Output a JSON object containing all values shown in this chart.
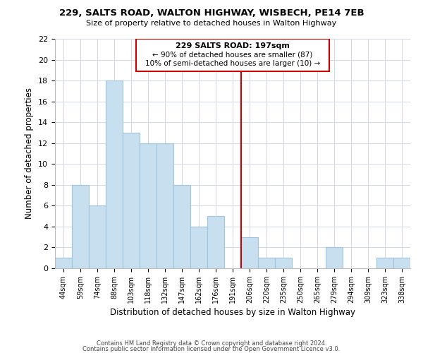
{
  "title": "229, SALTS ROAD, WALTON HIGHWAY, WISBECH, PE14 7EB",
  "subtitle": "Size of property relative to detached houses in Walton Highway",
  "xlabel": "Distribution of detached houses by size in Walton Highway",
  "ylabel": "Number of detached properties",
  "bar_labels": [
    "44sqm",
    "59sqm",
    "74sqm",
    "88sqm",
    "103sqm",
    "118sqm",
    "132sqm",
    "147sqm",
    "162sqm",
    "176sqm",
    "191sqm",
    "206sqm",
    "220sqm",
    "235sqm",
    "250sqm",
    "265sqm",
    "279sqm",
    "294sqm",
    "309sqm",
    "323sqm",
    "338sqm"
  ],
  "bar_values": [
    1,
    8,
    6,
    18,
    13,
    12,
    12,
    8,
    4,
    5,
    0,
    3,
    1,
    1,
    0,
    0,
    2,
    0,
    0,
    1,
    1
  ],
  "bar_color": "#c8dff0",
  "bar_edge_color": "#a0c4de",
  "annotation_title": "229 SALTS ROAD: 197sqm",
  "annotation_line1": "← 90% of detached houses are smaller (87)",
  "annotation_line2": "10% of semi-detached houses are larger (10) →",
  "vline_color": "#cc0000",
  "ylim": [
    0,
    22
  ],
  "yticks": [
    0,
    2,
    4,
    6,
    8,
    10,
    12,
    14,
    16,
    18,
    20,
    22
  ],
  "footer_line1": "Contains HM Land Registry data © Crown copyright and database right 2024.",
  "footer_line2": "Contains public sector information licensed under the Open Government Licence v3.0.",
  "bg_color": "#ffffff",
  "grid_color": "#d0d8e8"
}
